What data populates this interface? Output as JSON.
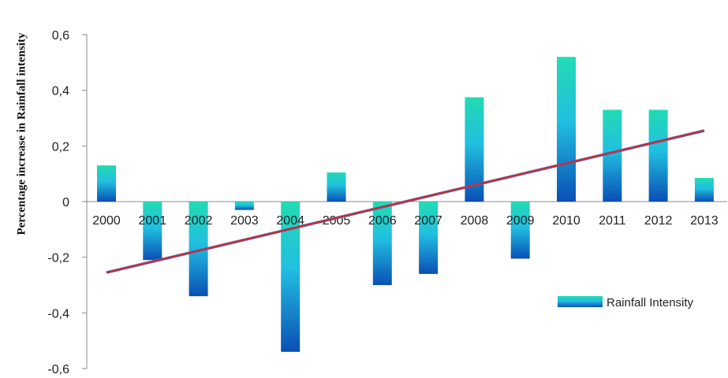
{
  "chart_data": {
    "type": "bar",
    "title": "",
    "xlabel": "",
    "ylabel": "Percentage increase in Rainfall intensity",
    "categories": [
      "2000",
      "2001",
      "2002",
      "2003",
      "2004",
      "2005",
      "2006",
      "2007",
      "2008",
      "2009",
      "2010",
      "2011",
      "2012",
      "2013"
    ],
    "series": [
      {
        "name": "Rainfall Intensity",
        "values": [
          0.13,
          -0.21,
          -0.34,
          -0.03,
          -0.54,
          0.105,
          -0.3,
          -0.26,
          0.375,
          -0.205,
          0.52,
          0.33,
          0.33,
          0.085
        ]
      }
    ],
    "trendline": {
      "start": -0.255,
      "end": 0.255,
      "color": "#cc2a36",
      "stroke_color": "#4f6fb0"
    },
    "ylim": [
      -0.6,
      0.6
    ],
    "yticks": [
      -0.6,
      -0.4,
      -0.2,
      0,
      0.2,
      0.4,
      0.6
    ],
    "ytick_labels": [
      "-0,6",
      "-0,4",
      "-0,2",
      "0",
      "0,2",
      "0,4",
      "0,6"
    ],
    "grid": false,
    "legend_position": "right",
    "colors": {
      "bar_top": "#22dbb3",
      "bar_mid": "#21bfe0",
      "bar_bottom": "#0a4fb5"
    }
  }
}
